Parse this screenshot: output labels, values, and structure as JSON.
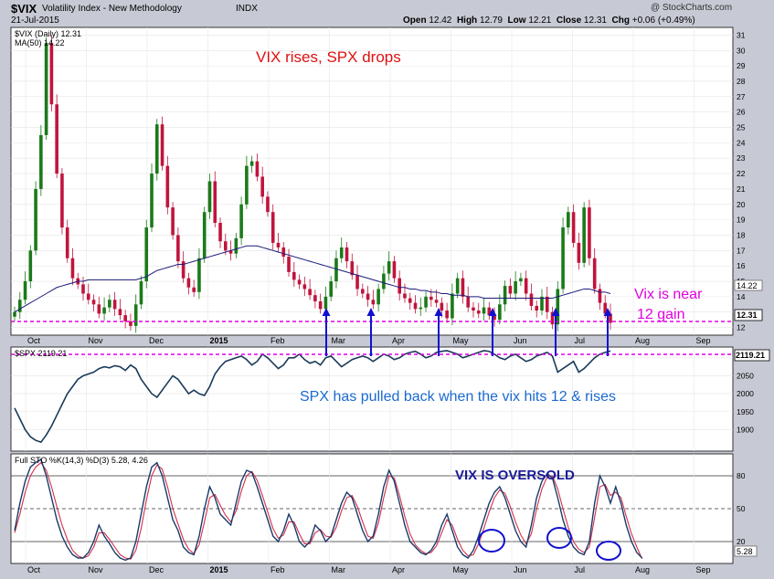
{
  "header": {
    "symbol": "$VIX",
    "name": "Volatility Index - New Methodology",
    "exchange": "INDX",
    "date": "21-Jul-2015",
    "watermark": "@ StockCharts.com",
    "open_label": "Open",
    "open": "12.42",
    "high_label": "High",
    "high": "12.79",
    "low_label": "Low",
    "low": "12.21",
    "close_label": "Close",
    "close": "12.31",
    "chg_label": "Chg",
    "chg": "+0.06 (+0.49%)"
  },
  "colors": {
    "background": "#c7c9d4",
    "panel": "#ffffff",
    "up_candle": "#1a7a1a",
    "down_candle": "#c0143c",
    "ma_line": "#1a1a7a",
    "spx_line": "#1a3a5a",
    "sto_k": "#1a3a6a",
    "sto_d": "#d0304a",
    "magenta": "#e000e0",
    "red_text": "#e01010",
    "blue_text": "#1a6ad0",
    "arrow": "#1010d0",
    "navy_text": "#1a1a9a"
  },
  "annotations": {
    "vix_rises": "VIX rises,  SPX drops",
    "vix_near_1": "Vix is near",
    "vix_near_2": "12 gain",
    "spx_pulled": "SPX has pulled back when the vix hits 12 & rises",
    "vix_oversold": "VIX IS OVERSOLD"
  },
  "chart_data": [
    {
      "type": "candlestick",
      "legend": [
        "$VIX (Daily) 12.31",
        "MA(50) 14.22"
      ],
      "y_ticks": [
        12,
        13,
        14,
        15,
        16,
        17,
        18,
        19,
        20,
        21,
        22,
        23,
        24,
        25,
        26,
        27,
        28,
        29,
        30,
        31
      ],
      "ylim": [
        11.5,
        31.5
      ],
      "last_value": "12.31",
      "ma_value": "14.22",
      "reference_line": 12,
      "series": [
        {
          "name": "$VIX",
          "values": [
            13.0,
            13.8,
            15.0,
            17.0,
            21.0,
            24.5,
            30.5,
            26.5,
            22.0,
            18.5,
            16.5,
            15.2,
            14.8,
            14.2,
            13.8,
            13.5,
            12.9,
            13.3,
            13.8,
            13.2,
            12.8,
            12.4,
            12.1,
            13.5,
            15.0,
            18.5,
            22.0,
            25.2,
            22.5,
            19.8,
            18.0,
            16.3,
            15.2,
            14.6,
            14.3,
            16.5,
            19.5,
            21.5,
            18.8,
            17.6,
            17.0,
            16.8,
            17.8,
            20.0,
            22.5,
            22.8,
            21.8,
            20.5,
            19.5,
            17.5,
            17.2,
            16.6,
            15.6,
            15.1,
            14.8,
            14.5,
            14.1,
            13.7,
            13.2,
            14.0,
            15.0,
            16.5,
            17.2,
            16.3,
            15.4,
            14.5,
            14.2,
            13.8,
            13.5,
            14.5,
            15.5,
            16.3,
            15.2,
            14.2,
            13.9,
            13.6,
            13.2,
            13.3,
            14.0,
            13.8,
            13.6,
            13.1,
            12.6,
            14.2,
            15.2,
            14.0,
            13.3,
            13.1,
            12.9,
            13.3,
            12.8,
            12.5,
            13.5,
            14.7,
            14.2,
            15.0,
            15.2,
            14.2,
            13.4,
            13.1,
            14.0,
            13.0,
            12.2,
            14.5,
            18.5,
            19.5,
            17.5,
            16.2,
            19.8,
            16.5,
            14.5,
            13.6,
            12.9,
            12.3
          ]
        },
        {
          "name": "MA(50)",
          "values": [
            13.0,
            13.2,
            13.4,
            13.6,
            13.8,
            14.0,
            14.2,
            14.4,
            14.6,
            14.7,
            14.8,
            14.9,
            15.0,
            15.0,
            15.1,
            15.1,
            15.1,
            15.1,
            15.1,
            15.1,
            15.1,
            15.1,
            15.1,
            15.1,
            15.2,
            15.3,
            15.5,
            15.7,
            15.8,
            15.9,
            16.0,
            16.1,
            16.1,
            16.2,
            16.3,
            16.4,
            16.5,
            16.6,
            16.7,
            16.8,
            16.9,
            17.0,
            17.1,
            17.2,
            17.3,
            17.3,
            17.3,
            17.2,
            17.1,
            17.0,
            16.9,
            16.8,
            16.7,
            16.6,
            16.5,
            16.4,
            16.3,
            16.2,
            16.1,
            16.0,
            15.9,
            15.8,
            15.7,
            15.6,
            15.5,
            15.4,
            15.3,
            15.2,
            15.1,
            15.0,
            14.9,
            14.8,
            14.7,
            14.6,
            14.6,
            14.5,
            14.5,
            14.4,
            14.4,
            14.3,
            14.3,
            14.2,
            14.2,
            14.1,
            14.1,
            14.1,
            14.0,
            14.0,
            14.0,
            13.9,
            13.9,
            13.9,
            13.9,
            13.9,
            13.9,
            13.9,
            13.9,
            13.9,
            13.9,
            13.9,
            13.9,
            13.9,
            13.9,
            14.0,
            14.1,
            14.2,
            14.3,
            14.4,
            14.5,
            14.5,
            14.4,
            14.3,
            14.3,
            14.2
          ]
        }
      ]
    },
    {
      "type": "line",
      "legend": [
        "$SPX 2119.21"
      ],
      "y_ticks": [
        1900,
        1950,
        2000,
        2050,
        2100
      ],
      "ylim": [
        1840,
        2130
      ],
      "last_value": "2119.21",
      "series": [
        {
          "name": "$SPX",
          "values": [
            1960,
            1930,
            1900,
            1880,
            1870,
            1865,
            1885,
            1910,
            1940,
            1970,
            2000,
            2020,
            2040,
            2050,
            2055,
            2060,
            2070,
            2075,
            2072,
            2078,
            2075,
            2065,
            2080,
            2070,
            2040,
            2020,
            2000,
            1990,
            2010,
            2030,
            2050,
            2040,
            2020,
            2000,
            2010,
            2000,
            1995,
            2020,
            2055,
            2075,
            2090,
            2095,
            2100,
            2105,
            2095,
            2080,
            2090,
            2110,
            2100,
            2085,
            2070,
            2080,
            2100,
            2100,
            2110,
            2095,
            2085,
            2090,
            2080,
            2100,
            2105,
            2090,
            2075,
            2085,
            2095,
            2100,
            2105,
            2100,
            2090,
            2100,
            2110,
            2105,
            2095,
            2100,
            2110,
            2115,
            2118,
            2110,
            2100,
            2105,
            2115,
            2118,
            2120,
            2115,
            2110,
            2100,
            2105,
            2110,
            2115,
            2120,
            2118,
            2110,
            2100,
            2095,
            2105,
            2110,
            2100,
            2090,
            2095,
            2105,
            2110,
            2115,
            2105,
            2060,
            2070,
            2080,
            2090,
            2060,
            2070,
            2085,
            2100,
            2110,
            2115,
            2119
          ]
        }
      ]
    },
    {
      "type": "line",
      "legend": [
        "Full STO %K(14,3) %D(3) 5.28, 4.26"
      ],
      "y_ticks": [
        20,
        50,
        80
      ],
      "ylim": [
        0,
        100
      ],
      "last_value": "5.28",
      "series": [
        {
          "name": "%K",
          "values": [
            30,
            55,
            75,
            88,
            92,
            95,
            80,
            60,
            40,
            25,
            15,
            8,
            5,
            5,
            10,
            20,
            35,
            25,
            18,
            10,
            5,
            3,
            5,
            20,
            45,
            70,
            88,
            92,
            80,
            60,
            40,
            30,
            15,
            10,
            8,
            25,
            50,
            70,
            60,
            45,
            40,
            35,
            55,
            75,
            85,
            83,
            70,
            55,
            40,
            25,
            20,
            30,
            45,
            35,
            20,
            15,
            20,
            35,
            30,
            20,
            25,
            40,
            55,
            65,
            60,
            45,
            30,
            20,
            25,
            45,
            70,
            85,
            75,
            55,
            35,
            20,
            15,
            10,
            8,
            12,
            20,
            35,
            45,
            30,
            15,
            8,
            5,
            12,
            25,
            40,
            55,
            65,
            70,
            60,
            45,
            30,
            20,
            15,
            35,
            60,
            75,
            82,
            78,
            60,
            40,
            25,
            15,
            10,
            8,
            20,
            55,
            80,
            70,
            55,
            70,
            55,
            35,
            20,
            10,
            5
          ]
        },
        {
          "name": "%D",
          "values": [
            28,
            45,
            65,
            80,
            88,
            92,
            85,
            70,
            52,
            35,
            22,
            12,
            7,
            5,
            7,
            15,
            28,
            28,
            22,
            15,
            8,
            5,
            4,
            12,
            32,
            58,
            80,
            90,
            86,
            70,
            50,
            36,
            22,
            13,
            9,
            17,
            38,
            60,
            63,
            53,
            44,
            38,
            48,
            66,
            80,
            84,
            76,
            62,
            47,
            32,
            23,
            26,
            38,
            38,
            27,
            18,
            18,
            28,
            31,
            25,
            24,
            33,
            48,
            60,
            62,
            52,
            38,
            25,
            23,
            37,
            60,
            80,
            78,
            62,
            43,
            27,
            17,
            12,
            9,
            10,
            16,
            28,
            40,
            35,
            22,
            12,
            7,
            8,
            18,
            32,
            47,
            60,
            67,
            64,
            52,
            38,
            26,
            18,
            27,
            50,
            68,
            79,
            80,
            68,
            50,
            33,
            20,
            13,
            10,
            15,
            42,
            70,
            72,
            62,
            65,
            60,
            43,
            27,
            15,
            4.26
          ]
        }
      ]
    }
  ],
  "x_axis": {
    "labels": [
      "Oct",
      "Nov",
      "Dec",
      "2015",
      "Feb",
      "Mar",
      "Apr",
      "May",
      "Jun",
      "Jul",
      "Aug",
      "Sep"
    ]
  }
}
